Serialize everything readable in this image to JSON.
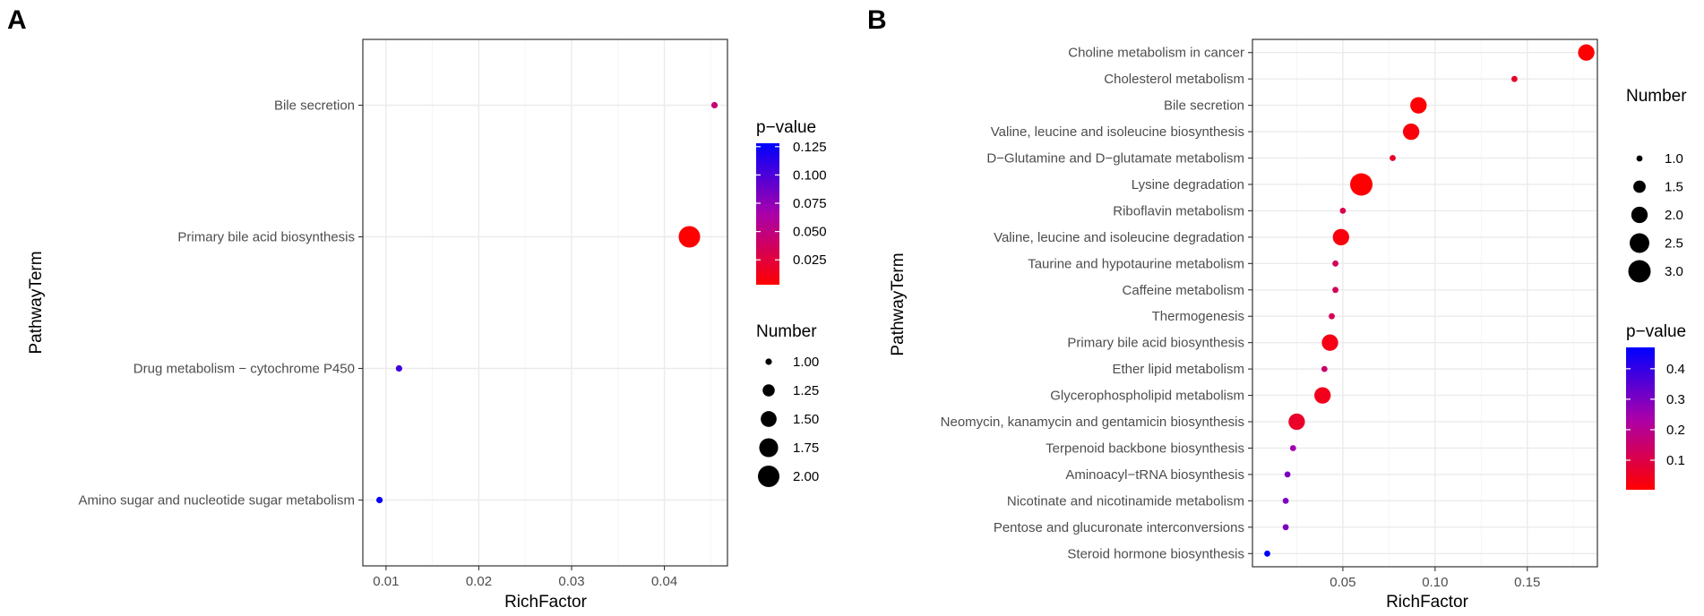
{
  "panels": [
    {
      "label": "A",
      "chart_data": {
        "type": "scatter",
        "title": "",
        "xlabel": "RichFactor",
        "ylabel": "PathwayTerm",
        "xlim": [
          0.0075,
          0.0468
        ],
        "xticks": [
          0.01,
          0.02,
          0.03,
          0.04
        ],
        "xtick_labels": [
          "0.01",
          "0.02",
          "0.03",
          "0.04"
        ],
        "categories": [
          "Bile secretion",
          "Primary bile acid biosynthesis",
          "Drug metabolism − cytochrome P450",
          "Amino sugar and nucleotide sugar metabolism"
        ],
        "x": [
          0.0454,
          0.0427,
          0.0114,
          0.0093
        ],
        "number": [
          1,
          2,
          1,
          1
        ],
        "pvalue": [
          0.045,
          0.003,
          0.105,
          0.125
        ],
        "size_legend": {
          "title": "Number",
          "values": [
            1.0,
            1.25,
            1.5,
            1.75,
            2.0
          ],
          "labels": [
            "1.00",
            "1.25",
            "1.50",
            "1.75",
            "2.00"
          ]
        },
        "color_legend": {
          "title": "p−value",
          "min": 0.003,
          "max": 0.128,
          "ticks": [
            0.025,
            0.05,
            0.075,
            0.1,
            0.125
          ],
          "tick_labels": [
            "0.025",
            "0.050",
            "0.075",
            "0.100",
            "0.125"
          ],
          "low_color": "#ff0000",
          "high_color": "#0000ff"
        }
      }
    },
    {
      "label": "B",
      "chart_data": {
        "type": "scatter",
        "title": "",
        "xlabel": "RichFactor",
        "ylabel": "PathwayTerm",
        "xlim": [
          0.001,
          0.188
        ],
        "xticks": [
          0.05,
          0.1,
          0.15
        ],
        "xtick_labels": [
          "0.05",
          "0.10",
          "0.15"
        ],
        "categories": [
          "Choline metabolism in cancer",
          "Cholesterol metabolism",
          "Bile secretion",
          "Valine, leucine and isoleucine biosynthesis",
          "D−Glutamine and D−glutamate metabolism",
          "Lysine degradation",
          "Riboflavin metabolism",
          "Valine, leucine and isoleucine degradation",
          "Taurine and hypotaurine metabolism",
          "Caffeine metabolism",
          "Thermogenesis",
          "Primary bile acid biosynthesis",
          "Ether lipid metabolism",
          "Glycerophospholipid metabolism",
          "Neomycin, kanamycin and gentamicin biosynthesis",
          "Terpenoid backbone biosynthesis",
          "Aminoacyl−tRNA biosynthesis",
          "Nicotinate and nicotinamide metabolism",
          "Pentose and glucuronate interconversions",
          "Steroid hormone biosynthesis"
        ],
        "x": [
          0.182,
          0.143,
          0.091,
          0.087,
          0.077,
          0.06,
          0.05,
          0.049,
          0.046,
          0.046,
          0.044,
          0.043,
          0.04,
          0.039,
          0.025,
          0.023,
          0.02,
          0.019,
          0.019,
          0.009
        ],
        "number": [
          2,
          1,
          2,
          2,
          1,
          3,
          1,
          2,
          1,
          1,
          1,
          2,
          1,
          2,
          2,
          1,
          1,
          1,
          1,
          1
        ],
        "pvalue": [
          0.005,
          0.06,
          0.01,
          0.02,
          0.06,
          0.003,
          0.1,
          0.02,
          0.12,
          0.12,
          0.12,
          0.03,
          0.15,
          0.04,
          0.06,
          0.25,
          0.3,
          0.3,
          0.3,
          0.47
        ],
        "size_legend": {
          "title": "Number",
          "values": [
            1.0,
            1.5,
            2.0,
            2.5,
            3.0
          ],
          "labels": [
            "1.0",
            "1.5",
            "2.0",
            "2.5",
            "3.0"
          ]
        },
        "color_legend": {
          "title": "p−value",
          "min": 0.003,
          "max": 0.47,
          "ticks": [
            0.1,
            0.2,
            0.3,
            0.4
          ],
          "tick_labels": [
            "0.1",
            "0.2",
            "0.3",
            "0.4"
          ],
          "low_color": "#ff0000",
          "high_color": "#0000ff"
        }
      }
    }
  ]
}
